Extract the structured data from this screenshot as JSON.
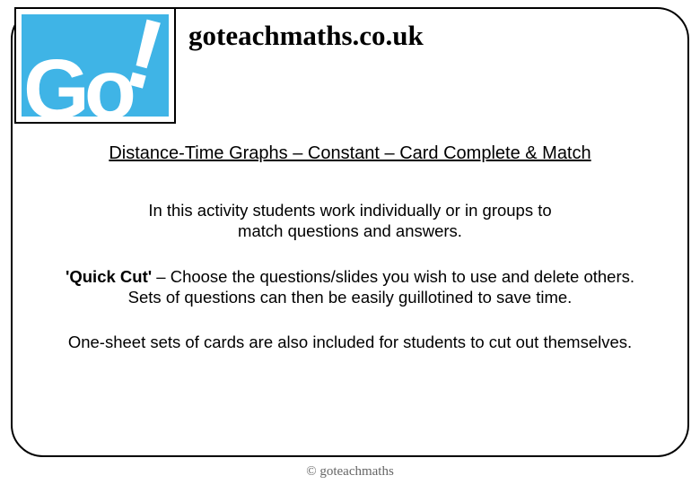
{
  "colors": {
    "logo_bg": "#3fb4e6",
    "logo_fg": "#ffffff",
    "border": "#000000",
    "text": "#000000",
    "footer_text": "#666666",
    "page_bg": "#ffffff"
  },
  "typography": {
    "site_title_fontsize": 31,
    "site_title_weight": 700,
    "lesson_title_fontsize": 20,
    "body_fontsize": 18.5,
    "footer_fontsize": 15
  },
  "logo": {
    "text": "Go",
    "bang": "!"
  },
  "site_title": "goteachmaths.co.uk",
  "lesson_title": "Distance-Time Graphs – Constant – Card Complete & Match",
  "intro_line1": "In this activity students work individually or in groups to",
  "intro_line2": "match questions and answers.",
  "quickcut_label": "'Quick Cut'",
  "quickcut_rest1": " – Choose the questions/slides you wish to use and delete others.",
  "quickcut_line2": "Sets of questions can then be easily guillotined to save time.",
  "onesheet": "One-sheet sets of cards are also included for students to cut out themselves.",
  "footer": "© goteachmaths"
}
